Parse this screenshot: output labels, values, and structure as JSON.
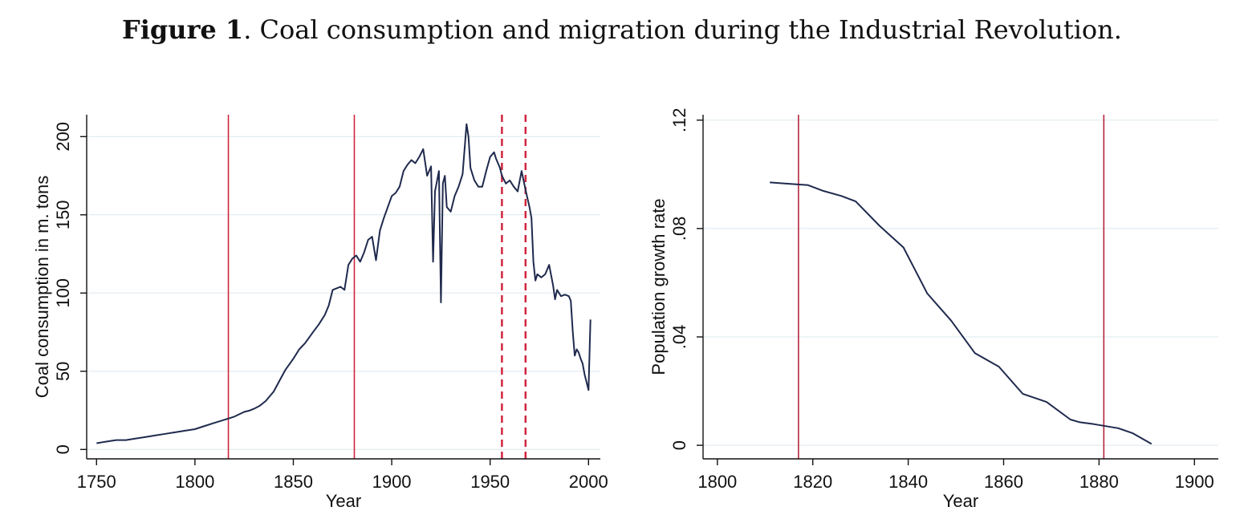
{
  "figure": {
    "label": "Figure 1",
    "caption": ". Coal consumption and migration during the Industrial Revolution."
  },
  "chart_data": [
    {
      "type": "line",
      "xlabel": "Year",
      "ylabel": "Coal consumption in m. tons",
      "xlim": [
        1745,
        2006
      ],
      "ylim": [
        -6,
        214
      ],
      "xticks": [
        1750,
        1800,
        1850,
        1900,
        1950,
        2000
      ],
      "yticks": [
        0,
        50,
        100,
        150,
        200
      ],
      "ytick_labels": [
        "0",
        "50",
        "100",
        "150",
        "200"
      ],
      "grid": "horizontal",
      "line_color": "#1f2a4d",
      "vline_color": "#d0263f",
      "vlines": [
        {
          "x": 1817,
          "style": "solid"
        },
        {
          "x": 1881,
          "style": "solid"
        },
        {
          "x": 1956,
          "style": "dashed"
        },
        {
          "x": 1968,
          "style": "dashed"
        }
      ],
      "series": [
        {
          "x": [
            1750,
            1755,
            1760,
            1765,
            1770,
            1775,
            1780,
            1785,
            1790,
            1795,
            1800,
            1805,
            1810,
            1815,
            1820,
            1825,
            1828,
            1830,
            1833,
            1836,
            1840,
            1843,
            1846,
            1850,
            1853,
            1856,
            1860,
            1863,
            1866,
            1868,
            1870,
            1872,
            1874,
            1876,
            1878,
            1880,
            1882,
            1884,
            1886,
            1888,
            1890,
            1892,
            1894,
            1896,
            1898,
            1900,
            1902,
            1904,
            1906,
            1908,
            1910,
            1912,
            1914,
            1916,
            1918,
            1920,
            1921,
            1922,
            1924,
            1925,
            1926,
            1927,
            1928,
            1930,
            1932,
            1934,
            1936,
            1938,
            1939,
            1940,
            1942,
            1944,
            1946,
            1948,
            1950,
            1952,
            1953,
            1955,
            1956,
            1958,
            1960,
            1962,
            1964,
            1966,
            1968,
            1970,
            1971,
            1972,
            1973,
            1974,
            1976,
            1978,
            1980,
            1982,
            1983,
            1984,
            1985,
            1986,
            1988,
            1990,
            1991,
            1992,
            1993,
            1994,
            1995,
            1996,
            1997,
            1998,
            2000,
            2001
          ],
          "y": [
            4,
            5,
            6,
            6,
            7,
            8,
            9,
            10,
            11,
            12,
            13,
            15,
            17,
            19,
            21,
            24,
            25,
            26,
            28,
            31,
            37,
            44,
            51,
            58,
            64,
            68,
            75,
            80,
            86,
            92,
            102,
            103,
            104,
            102,
            118,
            122,
            124,
            120,
            126,
            134,
            136,
            121,
            140,
            148,
            155,
            162,
            164,
            168,
            178,
            182,
            185,
            183,
            187,
            192,
            175,
            181,
            120,
            165,
            178,
            94,
            170,
            175,
            155,
            152,
            162,
            168,
            176,
            208,
            200,
            180,
            172,
            168,
            168,
            178,
            187,
            190,
            186,
            180,
            175,
            170,
            172,
            168,
            165,
            178,
            166,
            155,
            148,
            120,
            108,
            112,
            110,
            112,
            118,
            105,
            96,
            102,
            100,
            98,
            99,
            98,
            95,
            75,
            60,
            64,
            62,
            58,
            55,
            48,
            38,
            83
          ]
        }
      ]
    },
    {
      "type": "line",
      "xlabel": "Year",
      "ylabel": "Population growth rate",
      "xlim": [
        1797,
        1905
      ],
      "ylim": [
        -0.005,
        0.122
      ],
      "xticks": [
        1800,
        1820,
        1840,
        1860,
        1880,
        1900
      ],
      "yticks": [
        0,
        0.04,
        0.08,
        0.12
      ],
      "ytick_labels": [
        "0",
        ".04",
        ".08",
        ".12"
      ],
      "grid": "horizontal",
      "line_color": "#1f2a4d",
      "vline_color": "#b5263f",
      "vlines": [
        {
          "x": 1817,
          "style": "solid"
        },
        {
          "x": 1881,
          "style": "solid"
        }
      ],
      "series": [
        {
          "x": [
            1811,
            1815,
            1819,
            1822,
            1826,
            1829,
            1834,
            1839,
            1844,
            1849,
            1854,
            1859,
            1864,
            1869,
            1874,
            1876,
            1879,
            1881,
            1884,
            1887,
            1891
          ],
          "y": [
            0.097,
            0.0965,
            0.096,
            0.094,
            0.092,
            0.09,
            0.081,
            0.073,
            0.056,
            0.046,
            0.034,
            0.029,
            0.019,
            0.016,
            0.0095,
            0.0085,
            0.0078,
            0.0072,
            0.0063,
            0.0045,
            0.0005
          ]
        }
      ]
    }
  ]
}
